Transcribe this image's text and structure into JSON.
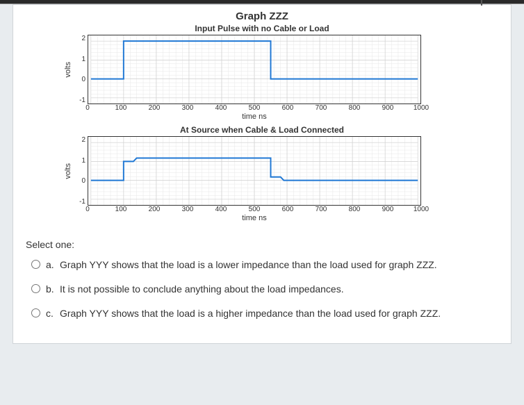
{
  "colors": {
    "page_bg": "#e8ecef",
    "card_bg": "#ffffff",
    "card_border": "#d0d4d8",
    "grid_minor": "#e6e6e6",
    "grid_major": "#cfcfcf",
    "axis": "#333333",
    "trace": "#1f77d4",
    "text": "#333333"
  },
  "figure": {
    "main_title": "Graph ZZZ",
    "panel1": {
      "title": "Input Pulse with no Cable or Load",
      "ylabel": "volts",
      "xlabel": "time ns",
      "xlim": [
        0,
        1000
      ],
      "ylim": [
        -1.3,
        2.3
      ],
      "yticks": [
        2,
        1,
        0,
        -1
      ],
      "xticks": [
        0,
        100,
        200,
        300,
        400,
        500,
        600,
        700,
        800,
        900,
        1000
      ],
      "trace": {
        "type": "step",
        "color": "#1f77d4",
        "stroke_width": 2,
        "points": [
          {
            "x": 0,
            "y": 0.0
          },
          {
            "x": 100,
            "y": 0.0
          },
          {
            "x": 100,
            "y": 2.0
          },
          {
            "x": 550,
            "y": 2.0
          },
          {
            "x": 550,
            "y": 0.0
          },
          {
            "x": 1000,
            "y": 0.0
          }
        ]
      }
    },
    "panel2": {
      "title": "At Source when Cable & Load Connected",
      "ylabel": "volts",
      "xlabel": "time ns",
      "xlim": [
        0,
        1000
      ],
      "ylim": [
        -1.3,
        2.3
      ],
      "yticks": [
        2,
        1,
        0,
        -1
      ],
      "xticks": [
        0,
        100,
        200,
        300,
        400,
        500,
        600,
        700,
        800,
        900,
        1000
      ],
      "trace": {
        "type": "step",
        "color": "#1f77d4",
        "stroke_width": 2,
        "points": [
          {
            "x": 0,
            "y": 0.0
          },
          {
            "x": 100,
            "y": 0.0
          },
          {
            "x": 100,
            "y": 1.0
          },
          {
            "x": 130,
            "y": 1.0
          },
          {
            "x": 140,
            "y": 1.18
          },
          {
            "x": 550,
            "y": 1.18
          },
          {
            "x": 550,
            "y": 0.18
          },
          {
            "x": 580,
            "y": 0.18
          },
          {
            "x": 590,
            "y": 0.0
          },
          {
            "x": 1000,
            "y": 0.0
          }
        ]
      }
    }
  },
  "question": {
    "prompt": "Select one:",
    "options": [
      {
        "letter": "a.",
        "text": "Graph YYY shows that the load is a lower impedance than the load used for graph ZZZ."
      },
      {
        "letter": "b.",
        "text": "It is not possible to conclude anything about the load impedances."
      },
      {
        "letter": "c.",
        "text": "Graph YYY shows that the load is a higher impedance than the load used for graph ZZZ."
      }
    ]
  }
}
